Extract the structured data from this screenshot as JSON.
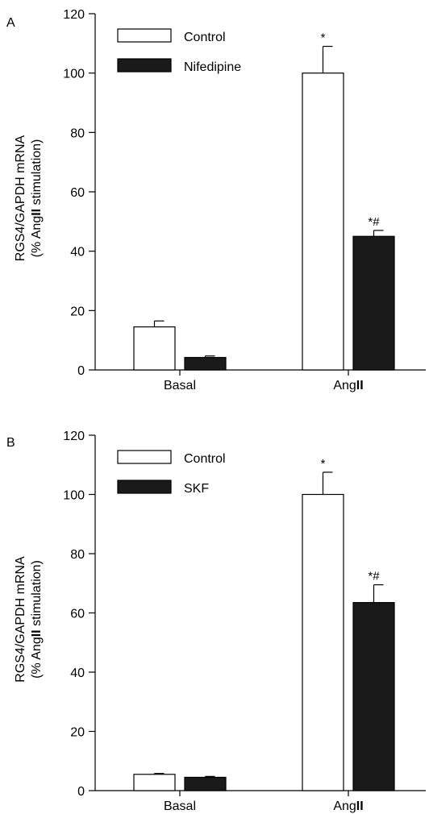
{
  "chart_data": [
    {
      "type": "bar",
      "panel": "A",
      "categories": [
        "Basal",
        "AngII"
      ],
      "category_labels": [
        {
          "prefix": "Basal",
          "bold": ""
        },
        {
          "prefix": "Ang",
          "bold": "II"
        }
      ],
      "ylabel": [
        "RGS4/GAPDH mRNA",
        "(% AngII stimulation)"
      ],
      "ylabel_parts": {
        "line1": "RGS4/GAPDH mRNA",
        "line2_prefix": "(% Ang",
        "line2_bold": "II",
        "line2_suffix": " stimulation)"
      },
      "ylim": [
        0,
        120
      ],
      "yticks": [
        0,
        20,
        40,
        60,
        80,
        100,
        120
      ],
      "series": [
        {
          "name": "Control",
          "fill": "#ffffff",
          "values": [
            14.5,
            100
          ],
          "errors": [
            2,
            9
          ],
          "annotations": [
            "",
            "*"
          ]
        },
        {
          "name": "Nifedipine",
          "fill": "#1a1a1a",
          "values": [
            4.2,
            45
          ],
          "errors": [
            0.5,
            2
          ],
          "annotations": [
            "",
            "*#"
          ]
        }
      ],
      "legend_position": "top-left"
    },
    {
      "type": "bar",
      "panel": "B",
      "categories": [
        "Basal",
        "AngII"
      ],
      "category_labels": [
        {
          "prefix": "Basal",
          "bold": ""
        },
        {
          "prefix": "Ang",
          "bold": "II"
        }
      ],
      "ylabel": [
        "RGS4/GAPDH mRNA",
        "(% AngII stimulation)"
      ],
      "ylabel_parts": {
        "line1": "RGS4/GAPDH mRNA",
        "line2_prefix": "(% Ang",
        "line2_bold": "II",
        "line2_suffix": " stimulation)"
      },
      "ylim": [
        0,
        120
      ],
      "yticks": [
        0,
        20,
        40,
        60,
        80,
        100,
        120
      ],
      "series": [
        {
          "name": "Control",
          "fill": "#ffffff",
          "values": [
            5.5,
            100
          ],
          "errors": [
            0.3,
            7.5
          ],
          "annotations": [
            "",
            "*"
          ]
        },
        {
          "name": "SKF",
          "fill": "#1a1a1a",
          "values": [
            4.5,
            63.5
          ],
          "errors": [
            0.3,
            6
          ],
          "annotations": [
            "",
            "*#"
          ]
        }
      ],
      "legend_position": "top-left"
    }
  ]
}
